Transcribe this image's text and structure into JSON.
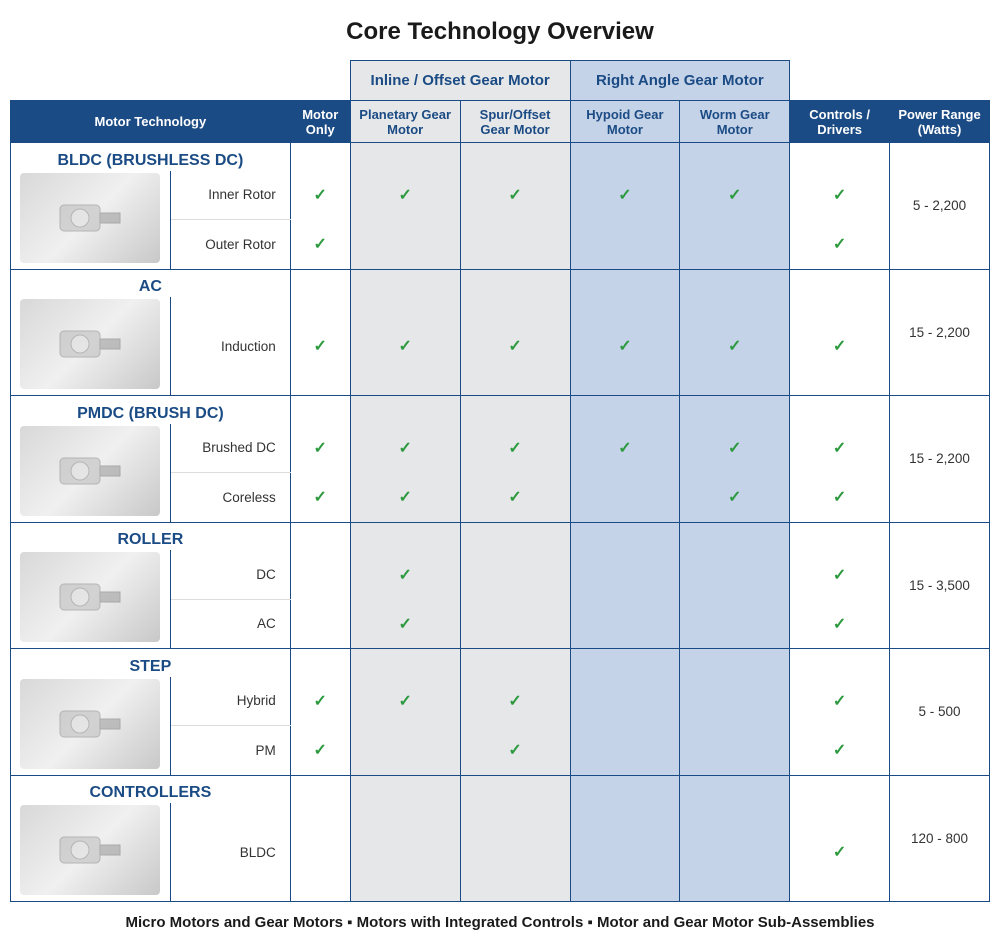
{
  "title": "Core Technology Overview",
  "footer": "Micro Motors and Gear Motors ▪ Motors with Integrated Controls ▪ Motor and Gear Motor Sub-Assemblies",
  "colors": {
    "header_bg": "#1b4b84",
    "header_text": "#ffffff",
    "inline_bg": "#e6e7e9",
    "rightangle_bg": "#c5d3e8",
    "border": "#1b4b84",
    "check": "#2d9a3f",
    "cat_text": "#1b4b84"
  },
  "group_headers": {
    "inline": "Inline / Offset Gear Motor",
    "right_angle": "Right Angle Gear Motor"
  },
  "columns": {
    "motor_tech": "Motor Technology",
    "motor_only": "Motor Only",
    "planetary": "Planetary Gear Motor",
    "spur": "Spur/Offset Gear Motor",
    "hypoid": "Hypoid Gear Motor",
    "worm": "Worm Gear Motor",
    "controls": "Controls / Drivers",
    "power": "Power Range (Watts)"
  },
  "categories": [
    {
      "name": "BLDC (BRUSHLESS DC)",
      "power": "5 - 2,200",
      "rows": [
        {
          "label": "Inner Rotor",
          "motor_only": true,
          "planetary": true,
          "spur": true,
          "hypoid": true,
          "worm": true,
          "controls": true
        },
        {
          "label": "Outer Rotor",
          "motor_only": true,
          "planetary": false,
          "spur": false,
          "hypoid": false,
          "worm": false,
          "controls": true
        }
      ]
    },
    {
      "name": "AC",
      "power": "15 - 2,200",
      "rows": [
        {
          "label": "Induction",
          "motor_only": true,
          "planetary": true,
          "spur": true,
          "hypoid": true,
          "worm": true,
          "controls": true
        }
      ]
    },
    {
      "name": "PMDC (BRUSH DC)",
      "power": "15 - 2,200",
      "rows": [
        {
          "label": "Brushed DC",
          "motor_only": true,
          "planetary": true,
          "spur": true,
          "hypoid": true,
          "worm": true,
          "controls": true
        },
        {
          "label": "Coreless",
          "motor_only": true,
          "planetary": true,
          "spur": true,
          "hypoid": false,
          "worm": true,
          "controls": true
        }
      ]
    },
    {
      "name": "ROLLER",
      "power": "15 - 3,500",
      "rows": [
        {
          "label": "DC",
          "motor_only": false,
          "planetary": true,
          "spur": false,
          "hypoid": false,
          "worm": false,
          "controls": true
        },
        {
          "label": "AC",
          "motor_only": false,
          "planetary": true,
          "spur": false,
          "hypoid": false,
          "worm": false,
          "controls": true
        }
      ]
    },
    {
      "name": "STEP",
      "power": "5 - 500",
      "rows": [
        {
          "label": "Hybrid",
          "motor_only": true,
          "planetary": true,
          "spur": true,
          "hypoid": false,
          "worm": false,
          "controls": true
        },
        {
          "label": "PM",
          "motor_only": true,
          "planetary": false,
          "spur": true,
          "hypoid": false,
          "worm": false,
          "controls": true
        }
      ]
    },
    {
      "name": "CONTROLLERS",
      "power": "120 - 800",
      "rows": [
        {
          "label": "BLDC",
          "motor_only": false,
          "planetary": false,
          "spur": false,
          "hypoid": false,
          "worm": false,
          "controls": true
        }
      ]
    }
  ]
}
